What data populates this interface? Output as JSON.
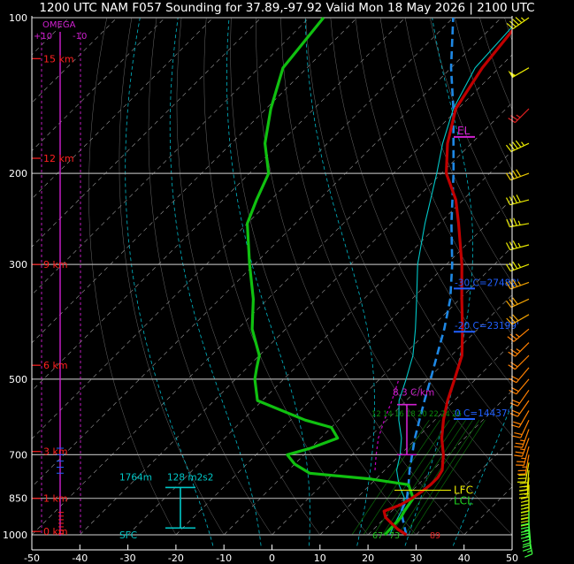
{
  "title": "1200 UTC NAM F057 Sounding for 37.89,-97.92 Valid  Mon 18 May 2026 | 2100 UTC",
  "colors": {
    "background": "#000000",
    "isobar": "#aaaaaa",
    "isotherm": "#9a9a9a",
    "temperature": "#c00000",
    "dewpoint": "#10c010",
    "parcel": "#1e88e5",
    "wetbulb": "#00c8c8",
    "virtual_temp": "#c000c0",
    "height_label": "#ff2020",
    "omega": "#d020d0",
    "freezing_levels": "#2060ff",
    "lfc": "#e8e800",
    "lcl": "#20d020"
  },
  "chart_data": {
    "type": "line",
    "skewt": true,
    "x_axis": {
      "label": "",
      "ticks": [
        -50,
        -40,
        -30,
        -20,
        -10,
        0,
        10,
        20,
        30,
        40,
        50
      ],
      "range": [
        -50,
        50
      ]
    },
    "y_axis": {
      "label": "",
      "scale": "log",
      "ticks": [
        100,
        200,
        300,
        500,
        700,
        850,
        1000
      ],
      "range": [
        100,
        1000
      ]
    },
    "height_labels": [
      "15 km",
      "12 km",
      "9 km",
      "6 km",
      "3 km",
      "1 km",
      "0 km"
    ],
    "omega_labels": {
      "title": "OMEGA",
      "left": "+10",
      "right": "-10"
    },
    "series": [
      {
        "name": "",
        "role": "temperature",
        "points": [
          [
            1000,
            28
          ],
          [
            975,
            25
          ],
          [
            950,
            22.5
          ],
          [
            925,
            20
          ],
          [
            900,
            18.4
          ],
          [
            875,
            20.5
          ],
          [
            850,
            21.5
          ],
          [
            825,
            22.2
          ],
          [
            800,
            22.6
          ],
          [
            775,
            22.6
          ],
          [
            750,
            22.0
          ],
          [
            700,
            19.0
          ],
          [
            650,
            15.2
          ],
          [
            600,
            11.8
          ],
          [
            550,
            8.6
          ],
          [
            500,
            5.6
          ],
          [
            450,
            2.2
          ],
          [
            400,
            -3.2
          ],
          [
            350,
            -9.6
          ],
          [
            300,
            -16.8
          ],
          [
            250,
            -26
          ],
          [
            225,
            -31.5
          ],
          [
            200,
            -39
          ],
          [
            175,
            -45
          ],
          [
            150,
            -50.5
          ],
          [
            125,
            -53.5
          ],
          [
            100,
            -55.5
          ]
        ]
      },
      {
        "name": "",
        "role": "dewpoint",
        "points": [
          [
            1000,
            23.5
          ],
          [
            975,
            23.4
          ],
          [
            950,
            23.3
          ],
          [
            925,
            23.2
          ],
          [
            900,
            22.6
          ],
          [
            875,
            22.2
          ],
          [
            850,
            21.8
          ],
          [
            800,
            18
          ],
          [
            780,
            9
          ],
          [
            760,
            -5
          ],
          [
            730,
            -10
          ],
          [
            700,
            -13.5
          ],
          [
            680,
            -10
          ],
          [
            650,
            -6.5
          ],
          [
            620,
            -10
          ],
          [
            600,
            -17
          ],
          [
            550,
            -31
          ],
          [
            500,
            -36
          ],
          [
            475,
            -38
          ],
          [
            450,
            -40
          ],
          [
            400,
            -47
          ],
          [
            350,
            -53
          ],
          [
            300,
            -61
          ],
          [
            250,
            -70
          ],
          [
            225,
            -73
          ],
          [
            200,
            -76
          ],
          [
            175,
            -83
          ],
          [
            150,
            -89
          ],
          [
            125,
            -95
          ],
          [
            100,
            -97
          ]
        ]
      },
      {
        "name": "",
        "role": "parcel",
        "points": [
          [
            1000,
            28
          ],
          [
            950,
            25
          ],
          [
            900,
            22
          ],
          [
            850,
            20.5
          ],
          [
            800,
            18
          ],
          [
            750,
            15.2
          ],
          [
            700,
            12.5
          ],
          [
            650,
            9.6
          ],
          [
            600,
            6.8
          ],
          [
            550,
            3.8
          ],
          [
            500,
            0.6
          ],
          [
            450,
            -3
          ],
          [
            400,
            -7
          ],
          [
            350,
            -12
          ],
          [
            300,
            -18.8
          ],
          [
            250,
            -27.5
          ],
          [
            200,
            -37.5
          ],
          [
            150,
            -51
          ],
          [
            125,
            -60
          ],
          [
            100,
            -70
          ]
        ]
      },
      {
        "name": "",
        "role": "wetbulb",
        "points": [
          [
            1000,
            24.5
          ],
          [
            950,
            23.2
          ],
          [
            900,
            22
          ],
          [
            850,
            20
          ],
          [
            800,
            16
          ],
          [
            750,
            12.5
          ],
          [
            700,
            10
          ],
          [
            650,
            6.8
          ],
          [
            600,
            2.5
          ],
          [
            550,
            -1.5
          ],
          [
            500,
            -4.5
          ],
          [
            450,
            -8
          ],
          [
            400,
            -13
          ],
          [
            350,
            -19
          ],
          [
            300,
            -26
          ],
          [
            250,
            -33
          ],
          [
            200,
            -41
          ],
          [
            175,
            -46
          ],
          [
            150,
            -51
          ],
          [
            125,
            -55
          ],
          [
            100,
            -56
          ]
        ]
      },
      {
        "name": "",
        "role": "virtual_temp_parcel",
        "points": [
          [
            750,
            8
          ],
          [
            700,
            5
          ],
          [
            650,
            2
          ],
          [
            600,
            -0.5
          ],
          [
            550,
            -3
          ],
          [
            500,
            -6
          ]
        ]
      }
    ],
    "annotations": {
      "el": {
        "label": "EL",
        "pressure": 170
      },
      "lfc": {
        "label": "LFC",
        "pressure": 820
      },
      "lcl": {
        "label": "LCL",
        "pressure": 860
      },
      "lapse_rate": {
        "label": "8.3 C/km",
        "top": 560,
        "bottom": 700
      },
      "freezing_levels": [
        {
          "label": "-30 C=27482'",
          "pressure": 330
        },
        {
          "label": "-20 C=23199'",
          "pressure": 400
        },
        {
          "label": "0 C=14437'",
          "pressure": 590
        }
      ],
      "helicity": {
        "depth_label": "1764m",
        "value_label": "128 m2s2",
        "top": 810,
        "bottom": 970
      },
      "sfc_label": "SFC",
      "surface_values": [
        "67",
        "73",
        "89"
      ],
      "mixing_ratios": [
        "12",
        "14",
        "16",
        "18",
        "20",
        "22",
        "24",
        "26"
      ]
    },
    "wind_barbs": [
      {
        "p": 100,
        "dir": 235,
        "spd": 45
      },
      {
        "p": 125,
        "dir": 240,
        "spd": 50
      },
      {
        "p": 150,
        "dir": 225,
        "spd": 25
      },
      {
        "p": 175,
        "dir": 245,
        "spd": 45
      },
      {
        "p": 200,
        "dir": 250,
        "spd": 40
      },
      {
        "p": 225,
        "dir": 255,
        "spd": 40
      },
      {
        "p": 250,
        "dir": 260,
        "spd": 35
      },
      {
        "p": 275,
        "dir": 255,
        "spd": 35
      },
      {
        "p": 300,
        "dir": 250,
        "spd": 35
      },
      {
        "p": 325,
        "dir": 250,
        "spd": 35
      },
      {
        "p": 350,
        "dir": 245,
        "spd": 30
      },
      {
        "p": 375,
        "dir": 240,
        "spd": 30
      },
      {
        "p": 400,
        "dir": 230,
        "spd": 25
      },
      {
        "p": 425,
        "dir": 225,
        "spd": 25
      },
      {
        "p": 450,
        "dir": 225,
        "spd": 20
      },
      {
        "p": 475,
        "dir": 220,
        "spd": 20
      },
      {
        "p": 500,
        "dir": 220,
        "spd": 20
      },
      {
        "p": 525,
        "dir": 215,
        "spd": 20
      },
      {
        "p": 550,
        "dir": 215,
        "spd": 20
      },
      {
        "p": 575,
        "dir": 210,
        "spd": 20
      },
      {
        "p": 600,
        "dir": 205,
        "spd": 20
      },
      {
        "p": 625,
        "dir": 200,
        "spd": 25
      },
      {
        "p": 650,
        "dir": 200,
        "spd": 25
      },
      {
        "p": 675,
        "dir": 195,
        "spd": 25
      },
      {
        "p": 700,
        "dir": 190,
        "spd": 25
      },
      {
        "p": 725,
        "dir": 190,
        "spd": 30
      },
      {
        "p": 750,
        "dir": 185,
        "spd": 30
      },
      {
        "p": 775,
        "dir": 185,
        "spd": 35
      },
      {
        "p": 800,
        "dir": 180,
        "spd": 35
      },
      {
        "p": 825,
        "dir": 180,
        "spd": 35
      },
      {
        "p": 850,
        "dir": 180,
        "spd": 35
      },
      {
        "p": 875,
        "dir": 180,
        "spd": 30
      },
      {
        "p": 900,
        "dir": 180,
        "spd": 30
      },
      {
        "p": 925,
        "dir": 180,
        "spd": 25
      },
      {
        "p": 950,
        "dir": 175,
        "spd": 25
      },
      {
        "p": 975,
        "dir": 175,
        "spd": 20
      },
      {
        "p": 1000,
        "dir": 170,
        "spd": 15
      }
    ]
  }
}
